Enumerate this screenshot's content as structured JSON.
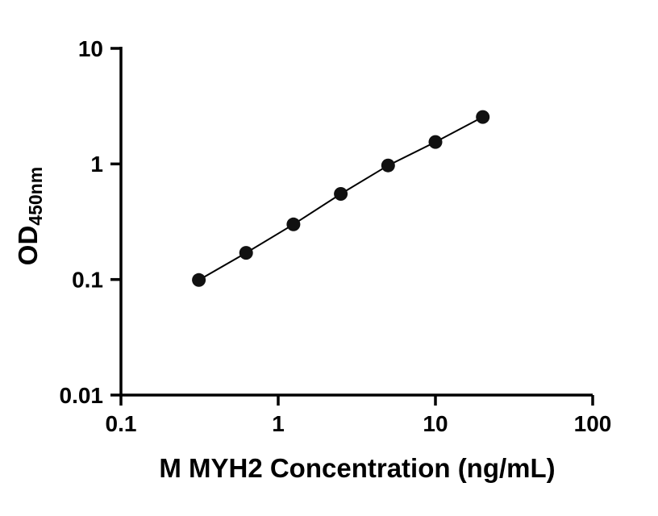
{
  "chart_data": {
    "type": "scatter",
    "title": "",
    "x": [
      0.313,
      0.625,
      1.25,
      2.5,
      5,
      10,
      20
    ],
    "y": [
      0.099,
      0.17,
      0.3,
      0.55,
      0.97,
      1.55,
      2.55
    ],
    "xlabel": "M MYH2 Concentration (ng/mL)",
    "ylabel_main": "OD",
    "ylabel_sub": "450nm",
    "xscale": "log",
    "yscale": "log",
    "xlim": [
      0.1,
      100
    ],
    "ylim": [
      0.01,
      10
    ],
    "x_ticks": [
      0.1,
      1,
      10,
      100
    ],
    "x_tick_labels": [
      "0.1",
      "1",
      "10",
      "100"
    ],
    "y_ticks": [
      0.01,
      0.1,
      1,
      10
    ],
    "y_tick_labels": [
      "0.01",
      "0.1",
      "1",
      "10"
    ],
    "grid": false,
    "legend_position": "none",
    "line_color": "#000000",
    "marker_color": "#111111",
    "axis_color": "#000000"
  }
}
